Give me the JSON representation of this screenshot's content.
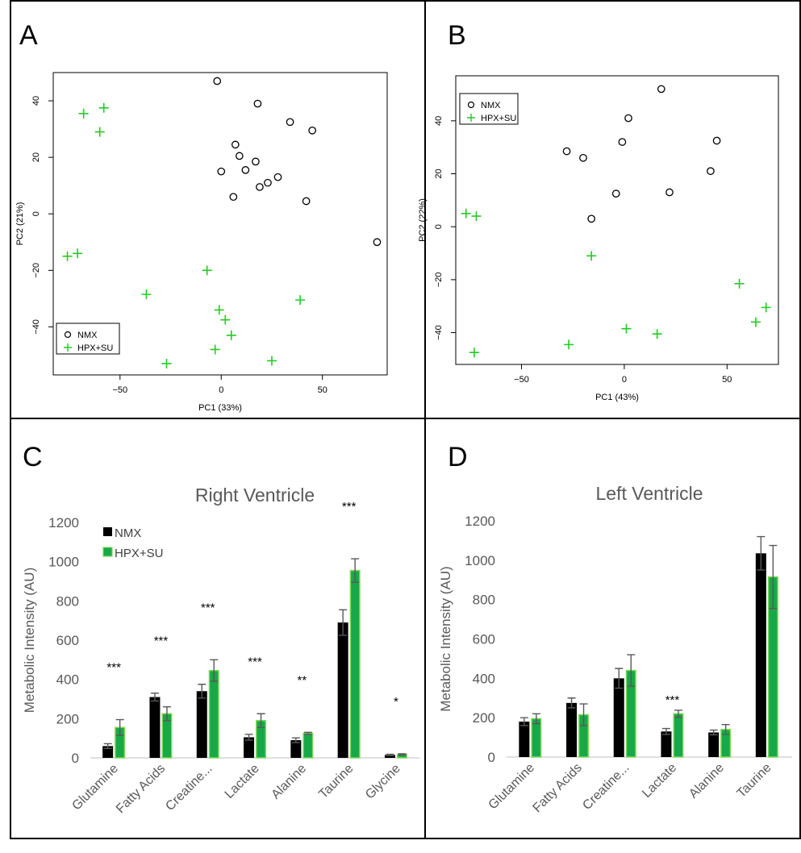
{
  "panels": {
    "a_letter": "A",
    "b_letter": "B",
    "c_letter": "C",
    "d_letter": "D"
  },
  "colors": {
    "nmx": "#000000",
    "hpx": "#22cc22",
    "bar_hpx": "#17a84a",
    "bar_hpx_edge": "#7ed957"
  },
  "chart_data": [
    {
      "type": "scatter",
      "panel": "A",
      "xlabel": "PC1 (33%)",
      "ylabel": "PC2 (21%)",
      "xlim": [
        -83,
        82
      ],
      "ylim": [
        -57,
        50
      ],
      "xticks": [
        -50,
        0,
        50
      ],
      "yticks": [
        -40,
        -20,
        0,
        20,
        40
      ],
      "legend": {
        "position": "bottom-left",
        "entries": [
          "NMX",
          "HPX+SU"
        ]
      },
      "series": [
        {
          "name": "NMX",
          "marker": "circle",
          "points": [
            [
              -2,
              47
            ],
            [
              18,
              39
            ],
            [
              34,
              32.5
            ],
            [
              45,
              29.5
            ],
            [
              7,
              24.5
            ],
            [
              9,
              20.5
            ],
            [
              17,
              18.5
            ],
            [
              12,
              15.5
            ],
            [
              0,
              15
            ],
            [
              28,
              13
            ],
            [
              23,
              11
            ],
            [
              19,
              9.5
            ],
            [
              6,
              6
            ],
            [
              42,
              4.5
            ],
            [
              77,
              -10
            ]
          ]
        },
        {
          "name": "HPX+SU",
          "marker": "plus",
          "points": [
            [
              -58,
              37.5
            ],
            [
              -68,
              35.5
            ],
            [
              -60,
              29
            ],
            [
              -71,
              -14
            ],
            [
              -76,
              -15
            ],
            [
              -7,
              -20
            ],
            [
              -37,
              -28.5
            ],
            [
              39,
              -30.5
            ],
            [
              -1,
              -34
            ],
            [
              2,
              -37.5
            ],
            [
              5,
              -43
            ],
            [
              -3,
              -48
            ],
            [
              25,
              -52
            ],
            [
              -27,
              -53
            ]
          ]
        }
      ]
    },
    {
      "type": "scatter",
      "panel": "B",
      "xlabel": "PC1 (43%)",
      "ylabel": "PC2 (22%)",
      "xlim": [
        -82,
        75
      ],
      "ylim": [
        -52,
        57
      ],
      "xticks": [
        -50,
        0,
        50
      ],
      "yticks": [
        -40,
        -20,
        0,
        20,
        40
      ],
      "legend": {
        "position": "top-left",
        "entries": [
          "NMX",
          "HPX+SU"
        ]
      },
      "series": [
        {
          "name": "NMX",
          "marker": "circle",
          "points": [
            [
              18,
              52
            ],
            [
              2,
              41
            ],
            [
              45,
              32.5
            ],
            [
              -1,
              32
            ],
            [
              -28,
              28.5
            ],
            [
              -20,
              26
            ],
            [
              42,
              21
            ],
            [
              22,
              13
            ],
            [
              -4,
              12.5
            ],
            [
              -16,
              3
            ]
          ]
        },
        {
          "name": "HPX+SU",
          "marker": "plus",
          "points": [
            [
              -77,
              5
            ],
            [
              -72,
              4
            ],
            [
              -16,
              -11
            ],
            [
              56,
              -21.5
            ],
            [
              69,
              -30.5
            ],
            [
              64,
              -36
            ],
            [
              1,
              -38.5
            ],
            [
              16,
              -40.5
            ],
            [
              -27,
              -44.5
            ],
            [
              -73,
              -47.5
            ]
          ]
        }
      ]
    },
    {
      "type": "bar",
      "panel": "C",
      "title": "Right Ventricle",
      "ylabel": "Metabolic Intensity (AU)",
      "ylim": [
        0,
        1200
      ],
      "yticks": [
        0,
        200,
        400,
        600,
        800,
        1000,
        1200
      ],
      "legend": {
        "position": "top-left",
        "entries": [
          "NMX",
          "HPX+SU"
        ]
      },
      "categories": [
        "Glutamine",
        "Fatty Acids",
        "Creatine...",
        "Lactate",
        "Alanine",
        "Taurine",
        "Glycine"
      ],
      "series": [
        {
          "name": "NMX",
          "values": [
            60,
            310,
            340,
            105,
            90,
            690,
            15
          ],
          "errors": [
            12,
            20,
            35,
            15,
            12,
            65,
            3
          ]
        },
        {
          "name": "HPX+SU",
          "values": [
            155,
            225,
            445,
            190,
            125,
            955,
            18
          ],
          "errors": [
            40,
            35,
            55,
            35,
            5,
            60,
            3
          ]
        }
      ],
      "significance": [
        "***",
        "***",
        "***",
        "***",
        "**",
        "***",
        "*"
      ]
    },
    {
      "type": "bar",
      "panel": "D",
      "title": "Left Ventricle",
      "ylabel": "Metabolic Intensity (AU)",
      "ylim": [
        0,
        1200
      ],
      "yticks": [
        0,
        200,
        400,
        600,
        800,
        1000,
        1200
      ],
      "categories": [
        "Glutamine",
        "Fatty Acids",
        "Creatine...",
        "Lactate",
        "Alanine",
        "Taurine"
      ],
      "series": [
        {
          "name": "NMX",
          "values": [
            180,
            275,
            400,
            130,
            125,
            1035
          ],
          "errors": [
            20,
            25,
            50,
            15,
            12,
            85
          ]
        },
        {
          "name": "HPX+SU",
          "values": [
            195,
            215,
            440,
            220,
            140,
            915
          ],
          "errors": [
            25,
            55,
            80,
            18,
            25,
            160
          ]
        }
      ],
      "significance": [
        "",
        "",
        "",
        "***",
        "",
        ""
      ]
    }
  ]
}
